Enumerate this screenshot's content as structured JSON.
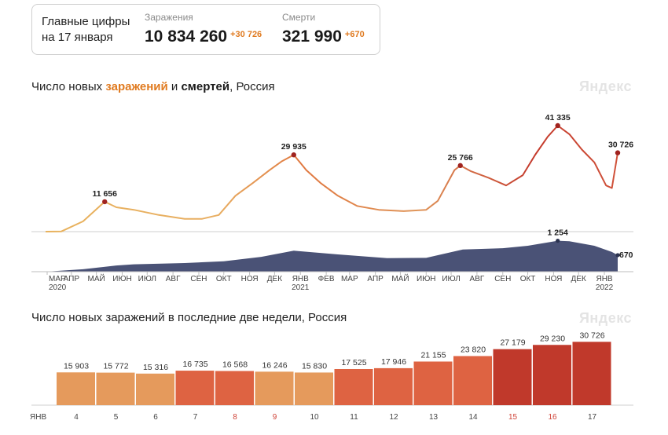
{
  "summary": {
    "label_line1": "Главные цифры",
    "label_line2": "на 17 января",
    "infections": {
      "title": "Заражения",
      "value": "10 834 260",
      "delta": "+30 726"
    },
    "deaths": {
      "title": "Смерти",
      "value": "321 990",
      "delta": "+670"
    }
  },
  "charts": {
    "chart1": {
      "title_part1": "Число новых ",
      "title_infections": "заражений",
      "title_part2": " и ",
      "title_deaths": "смертей",
      "title_part3": ", Россия",
      "brand": "Яндекс"
    },
    "chart2": {
      "title": "Число новых заражений в последние две недели, Россия",
      "brand": "Яндекс"
    }
  },
  "colors": {
    "bar_light": "#e59a5c",
    "bar_mid": "#de6342",
    "bar_dark": "#c0392b",
    "deaths_area": "#4a5276",
    "weekend_text": "#d0453a"
  },
  "chart_data": [
    {
      "type": "line",
      "series": [
        {
          "name": "заражений",
          "x": [
            "2020-03-01",
            "2020-03-20",
            "2020-04-15",
            "2020-05-11",
            "2020-05-25",
            "2020-06-15",
            "2020-07-15",
            "2020-08-15",
            "2020-09-05",
            "2020-09-25",
            "2020-10-15",
            "2020-11-05",
            "2020-11-25",
            "2020-12-10",
            "2020-12-24",
            "2021-01-08",
            "2021-01-25",
            "2021-02-15",
            "2021-03-10",
            "2021-04-05",
            "2021-05-05",
            "2021-06-01",
            "2021-06-15",
            "2021-07-05",
            "2021-07-12",
            "2021-07-25",
            "2021-08-15",
            "2021-09-05",
            "2021-09-25",
            "2021-10-10",
            "2021-10-25",
            "2021-11-06",
            "2021-11-20",
            "2021-12-05",
            "2021-12-20",
            "2022-01-03",
            "2022-01-10",
            "2022-01-17"
          ],
          "values": [
            0,
            100,
            4000,
            11656,
            9500,
            8500,
            6500,
            5000,
            5000,
            6500,
            14000,
            19000,
            24000,
            27500,
            29935,
            24000,
            19000,
            14000,
            10000,
            8500,
            8000,
            8500,
            12000,
            24000,
            25766,
            23500,
            21000,
            18000,
            22000,
            30000,
            37000,
            41335,
            38000,
            32000,
            27000,
            18000,
            17000,
            30726
          ]
        },
        {
          "name": "смертей",
          "x": [
            "2020-03-01",
            "2020-04-15",
            "2020-05-25",
            "2020-06-15",
            "2020-08-15",
            "2020-10-01",
            "2020-11-15",
            "2020-12-24",
            "2021-02-15",
            "2021-04-15",
            "2021-06-01",
            "2021-07-15",
            "2021-09-01",
            "2021-10-01",
            "2021-11-06",
            "2021-11-20",
            "2021-12-20",
            "2022-01-10",
            "2022-01-17"
          ],
          "values": [
            0,
            100,
            250,
            300,
            350,
            420,
            600,
            850,
            700,
            550,
            560,
            900,
            950,
            1050,
            1254,
            1230,
            1050,
            800,
            670
          ]
        }
      ],
      "annotations": [
        {
          "x": "2020-05-11",
          "value": 11656,
          "label": "11 656"
        },
        {
          "x": "2020-12-24",
          "value": 29935,
          "label": "29 935"
        },
        {
          "x": "2021-07-12",
          "value": 25766,
          "label": "25 766"
        },
        {
          "x": "2021-11-06",
          "value": 41335,
          "label": "41 335"
        },
        {
          "x": "2022-01-17",
          "value": 30726,
          "label": "30 726"
        },
        {
          "x": "2021-11-06",
          "value": 1254,
          "label": "1 254",
          "series": "смертей"
        },
        {
          "x": "2022-01-17",
          "value": 670,
          "label": "670",
          "series": "смертей"
        }
      ],
      "x_ticks": [
        "МАР",
        "АПР",
        "МАЙ",
        "ИЮН",
        "ИЮЛ",
        "АВГ",
        "СЕН",
        "ОКТ",
        "НОЯ",
        "ДЕК",
        "ЯНВ",
        "ФЕВ",
        "МАР",
        "АПР",
        "МАЙ",
        "ИЮН",
        "ИЮЛ",
        "АВГ",
        "СЕН",
        "ОКТ",
        "НОЯ",
        "ДЕК",
        "ЯНВ"
      ],
      "x_years": [
        {
          "after_tick": 0,
          "label": "2020"
        },
        {
          "after_tick": 10,
          "label": "2021"
        },
        {
          "after_tick": 22,
          "label": "2022"
        }
      ],
      "ylim_infections": [
        0,
        45000
      ],
      "ylim_deaths": [
        0,
        1400
      ],
      "grid": false,
      "legend": "none"
    },
    {
      "type": "bar",
      "categories": [
        "4",
        "5",
        "6",
        "7",
        "8",
        "9",
        "10",
        "11",
        "12",
        "13",
        "14",
        "15",
        "16",
        "17"
      ],
      "values": [
        15903,
        15772,
        15316,
        16735,
        16568,
        16246,
        15830,
        17525,
        17946,
        21155,
        23820,
        27179,
        29230,
        30726
      ],
      "labels": [
        "15 903",
        "15 772",
        "15 316",
        "16 735",
        "16 568",
        "16 246",
        "15 830",
        "17 525",
        "17 946",
        "21 155",
        "23 820",
        "27 179",
        "29 230",
        "30 726"
      ],
      "weekend": [
        false,
        false,
        false,
        false,
        true,
        true,
        false,
        false,
        false,
        false,
        false,
        true,
        true,
        false
      ],
      "month_label": "ЯНВ",
      "ylim": [
        0,
        32000
      ],
      "grid": false,
      "legend": "none"
    }
  ]
}
